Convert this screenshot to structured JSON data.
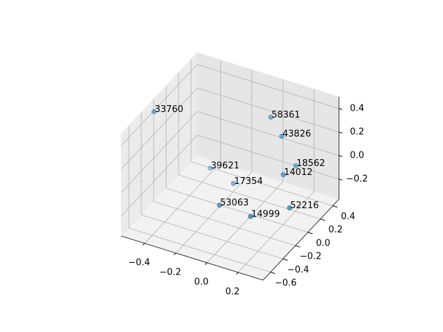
{
  "chart_data": {
    "type": "scatter3d",
    "color": "#1f77b4",
    "grid": true,
    "labels": [
      "33760",
      "58361",
      "43826",
      "18562",
      "14012",
      "39621",
      "17354",
      "53063",
      "14999",
      "52216"
    ],
    "x": [
      -0.54,
      0.05,
      0.16,
      0.17,
      0.21,
      -0.42,
      -0.15,
      -0.08,
      0.16,
      0.33
    ],
    "y": [
      -0.22,
      0.18,
      0.08,
      0.28,
      -0.02,
      0.38,
      0.08,
      -0.32,
      -0.42,
      -0.22
    ],
    "z": [
      0.41,
      0.38,
      0.32,
      -0.04,
      0.07,
      -0.36,
      -0.21,
      -0.14,
      -0.08,
      -0.05
    ],
    "xlim": [
      -0.55,
      0.36
    ],
    "ylim": [
      -0.72,
      0.5
    ],
    "zlim": [
      -0.37,
      0.5
    ],
    "xticks": [
      {
        "value": -0.4,
        "label": "−0.4"
      },
      {
        "value": -0.2,
        "label": "−0.2"
      },
      {
        "value": 0,
        "label": "0.0"
      },
      0.2
    ],
    "yticks": [
      {
        "value": -0.6,
        "label": "−0.6"
      },
      {
        "value": -0.4,
        "label": "−0.4"
      },
      {
        "value": -0.2,
        "label": "−0.2"
      },
      {
        "value": 0,
        "label": "0.0"
      },
      0.2,
      0.4
    ],
    "zticks": [
      {
        "value": -0.2,
        "label": "−0.2"
      },
      {
        "value": 0,
        "label": "0.0"
      },
      0.2,
      0.4
    ]
  }
}
